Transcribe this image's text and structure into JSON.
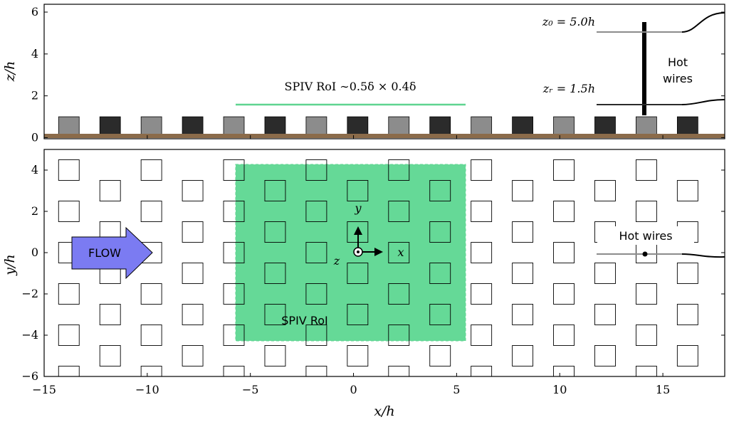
{
  "colors": {
    "axis": "#000000",
    "roughness_light": "#8c8c8c",
    "roughness_dark": "#2b2b2b",
    "ground": "#8b6b4a",
    "spiv_fill": "#3ecf7d",
    "spiv_line": "#5fd490",
    "flow_arrow": "#7b7bf2",
    "hotwire_light": "#8c8c8c",
    "hotwire_dark": "#2b2b2b"
  },
  "top_panel": {
    "ylabel": "z/h",
    "yticks": [
      "0",
      "2",
      "4",
      "6"
    ],
    "annotations": {
      "spiv_roi": "SPIV RoI ∼0.5δ × 0.4δ",
      "z0": "z₀ = 5.0h",
      "zr": "zᵣ = 1.5h",
      "hot_wires_line1": "Hot",
      "hot_wires_line2": "wires"
    }
  },
  "bottom_panel": {
    "ylabel": "y/h",
    "xlabel": "x/h",
    "xticks": [
      "−15",
      "−10",
      "−5",
      "0",
      "5",
      "10",
      "15"
    ],
    "yticks": [
      "−6",
      "−4",
      "−2",
      "0",
      "2",
      "4"
    ],
    "annotations": {
      "flow": "FLOW",
      "spiv_roi": "SPIV RoI",
      "hot_wires": "Hot wires",
      "coord_y": "y",
      "coord_x": "x",
      "coord_z": "z"
    }
  },
  "chart_data": {
    "type": "diagram",
    "x_range": [
      -15,
      18
    ],
    "top_z_range": [
      0,
      6
    ],
    "bottom_y_range": [
      -6,
      5
    ],
    "roughness_x_centers": [
      -13.8,
      -11.8,
      -9.8,
      -7.8,
      -5.8,
      -3.8,
      -1.8,
      0.2,
      2.2,
      4.2,
      6.2,
      8.2,
      10.2,
      12.2,
      14.2,
      16.2
    ],
    "roughness_height": 1.0,
    "spiv_roi_x": [
      -6,
      5.3
    ],
    "spiv_roi_y": [
      -4.3,
      4.3
    ],
    "spiv_roi_z": 1.5,
    "hot_wire_x": 14.2,
    "hot_wire_z": [
      1.5,
      5.0
    ]
  }
}
